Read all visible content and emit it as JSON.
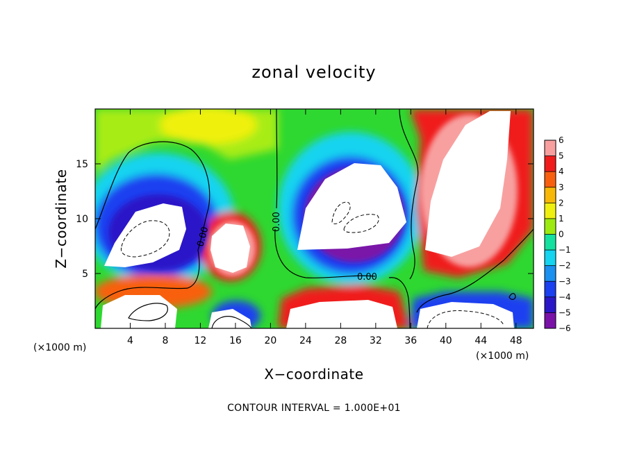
{
  "chart_data": {
    "type": "heatmap",
    "title": "zonal velocity",
    "xlabel": "X−coordinate",
    "ylabel": "Z−coordinate",
    "x_unit_left": "(×1000 m)",
    "x_unit_right": "(×1000 m)",
    "xlim": [
      0,
      50
    ],
    "ylim": [
      0,
      20
    ],
    "x_ticks": [
      4,
      8,
      12,
      16,
      20,
      24,
      28,
      32,
      36,
      40,
      44,
      48
    ],
    "y_ticks": [
      5,
      10,
      15
    ],
    "colorbar": {
      "min": -6,
      "max": 6,
      "tick_values": [
        6,
        5,
        4,
        3,
        2,
        1,
        0,
        -1,
        -2,
        -3,
        -4,
        -5,
        -6
      ],
      "tick_labels": [
        "6",
        "5",
        "4",
        "3",
        "2",
        "1",
        "0",
        "−1",
        "−2",
        "−3",
        "−4",
        "−5",
        "−6"
      ],
      "colors": {
        "-6": "#7a12a8",
        "-5": "#2a18c8",
        "-4": "#1a40f0",
        "-3": "#1a90f0",
        "-2": "#14d4f0",
        "-1": "#14e0a0",
        "0": "#2ed830",
        "1": "#9cea10",
        "2": "#f0f010",
        "3": "#f8b808",
        "4": "#f86010",
        "5": "#f01c1c",
        "6": "#f8a0a0"
      },
      "saturation_color": "#ffffff"
    },
    "contour_labels": [
      "0.00",
      "0.00",
      "0.00"
    ],
    "footer": "CONTOUR INTERVAL = 1.000E+01"
  }
}
